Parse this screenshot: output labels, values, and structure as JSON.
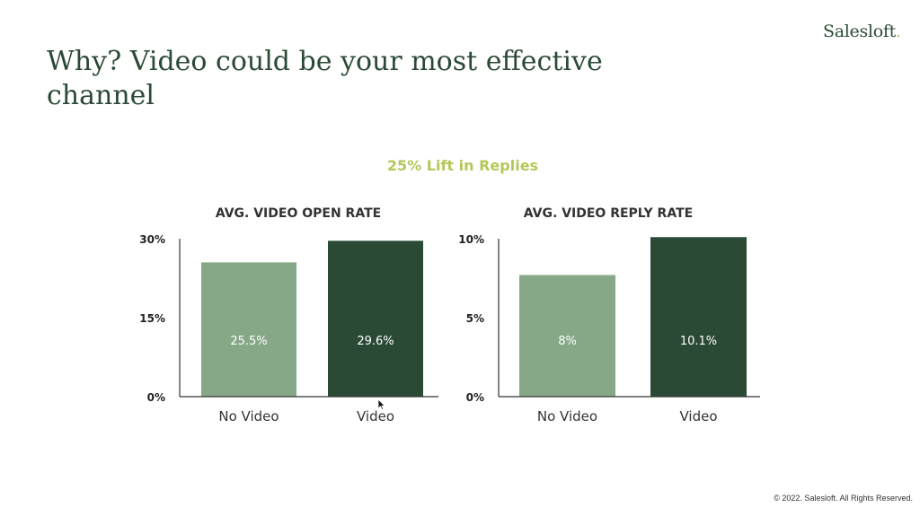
{
  "brand": {
    "name": "Salesloft",
    "dot": "."
  },
  "slide": {
    "title": "Why? Video could be your most effective channel",
    "subtitle": "25% Lift in Replies",
    "footer": "© 2022. Salesloft. All Rights Reserved."
  },
  "colors": {
    "title": "#2b4a36",
    "accent": "#b7c65a",
    "no_video_bar": "#86a887",
    "video_bar": "#2b4a36",
    "axis": "#333333"
  },
  "chart_data": [
    {
      "type": "bar",
      "title": "AVG. VIDEO OPEN RATE",
      "categories": [
        "No Video",
        "Video"
      ],
      "values": [
        25.5,
        29.6
      ],
      "value_labels": [
        "25.5%",
        "29.6%"
      ],
      "ylim": [
        0,
        30
      ],
      "yticks": [
        {
          "value": 0,
          "label": "0%"
        },
        {
          "value": 15,
          "label": "15%"
        },
        {
          "value": 30,
          "label": "30%"
        }
      ],
      "xlabel": "",
      "ylabel": "",
      "grid": false
    },
    {
      "type": "bar",
      "title": "AVG. VIDEO REPLY RATE",
      "categories": [
        "No Video",
        "Video"
      ],
      "values": [
        7.7,
        10.1
      ],
      "value_labels": [
        "8%",
        "10.1%"
      ],
      "ylim": [
        0,
        10
      ],
      "yticks": [
        {
          "value": 0,
          "label": "0%"
        },
        {
          "value": 5,
          "label": "5%"
        },
        {
          "value": 10,
          "label": "10%"
        }
      ],
      "xlabel": "",
      "ylabel": "",
      "grid": false
    }
  ]
}
